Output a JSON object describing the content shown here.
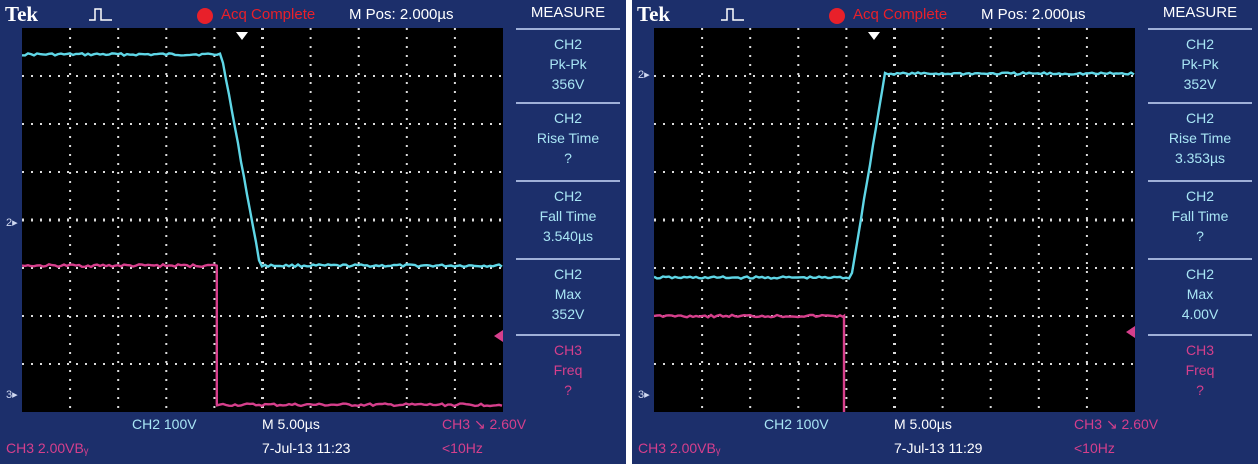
{
  "colors": {
    "background": "#1c2f6b",
    "ch2": "#5fd6e6",
    "ch3": "#d63f8c",
    "record": "#e8202a"
  },
  "scopes": [
    {
      "brand": "Tek",
      "trigger_icon": "pulse-trigger-icon",
      "status": "Acq Complete",
      "mpos": "M Pos: 2.000µs",
      "side_title": "MEASURE",
      "measurements": [
        {
          "ch": "CH2",
          "label": "Pk-Pk",
          "value": "356V",
          "color": "cyan"
        },
        {
          "ch": "CH2",
          "label": "Rise Time",
          "value": "?",
          "color": "cyan"
        },
        {
          "ch": "CH2",
          "label": "Fall Time",
          "value": "3.540µs",
          "color": "cyan"
        },
        {
          "ch": "CH2",
          "label": "Max",
          "value": "352V",
          "color": "cyan"
        },
        {
          "ch": "CH3",
          "label": "Freq",
          "value": "?",
          "color": "pink"
        }
      ],
      "bottom": {
        "ch2_scale": "CH2  100V",
        "timebase": "M 5.00µs",
        "trigger": "CH3 ↘ 2.60V",
        "ch3_scale": "CH3  2.00VBᵧ",
        "datetime": "7-Jul-13 11:23",
        "freq": "<10Hz"
      },
      "ch2_marker": "2",
      "ch3_marker": "3",
      "traces": {
        "ch2_high_div": 0.55,
        "ch2_low_div": 4.95,
        "ch2_edge_start": 4.15,
        "ch2_edge_end": 4.95,
        "ch3_high_div": 4.95,
        "ch3_low_div": 7.85,
        "ch3_edge": 4.05
      }
    },
    {
      "brand": "Tek",
      "trigger_icon": "pulse-trigger-icon",
      "status": "Acq Complete",
      "mpos": "M Pos: 2.000µs",
      "side_title": "MEASURE",
      "measurements": [
        {
          "ch": "CH2",
          "label": "Pk-Pk",
          "value": "352V",
          "color": "cyan"
        },
        {
          "ch": "CH2",
          "label": "Rise Time",
          "value": "3.353µs",
          "color": "cyan"
        },
        {
          "ch": "CH2",
          "label": "Fall Time",
          "value": "?",
          "color": "cyan"
        },
        {
          "ch": "CH2",
          "label": "Max",
          "value": "4.00V",
          "color": "cyan"
        },
        {
          "ch": "CH3",
          "label": "Freq",
          "value": "?",
          "color": "pink"
        }
      ],
      "bottom": {
        "ch2_scale": "CH2  100V",
        "timebase": "M 5.00µs",
        "trigger": "CH3 ↘ 2.60V",
        "ch3_scale": "CH3  2.00VBᵧ",
        "datetime": "7-Jul-13 11:29",
        "freq": "<10Hz"
      },
      "ch2_marker": "2",
      "ch3_marker": "3",
      "traces": {
        "ch2_high_div": 0.95,
        "ch2_low_div": 5.2,
        "ch2_edge_start": 4.1,
        "ch2_edge_end": 4.8,
        "ch3_high_div": 6.0,
        "ch3_low_div": 9.15,
        "ch3_edge": 3.95
      }
    }
  ]
}
